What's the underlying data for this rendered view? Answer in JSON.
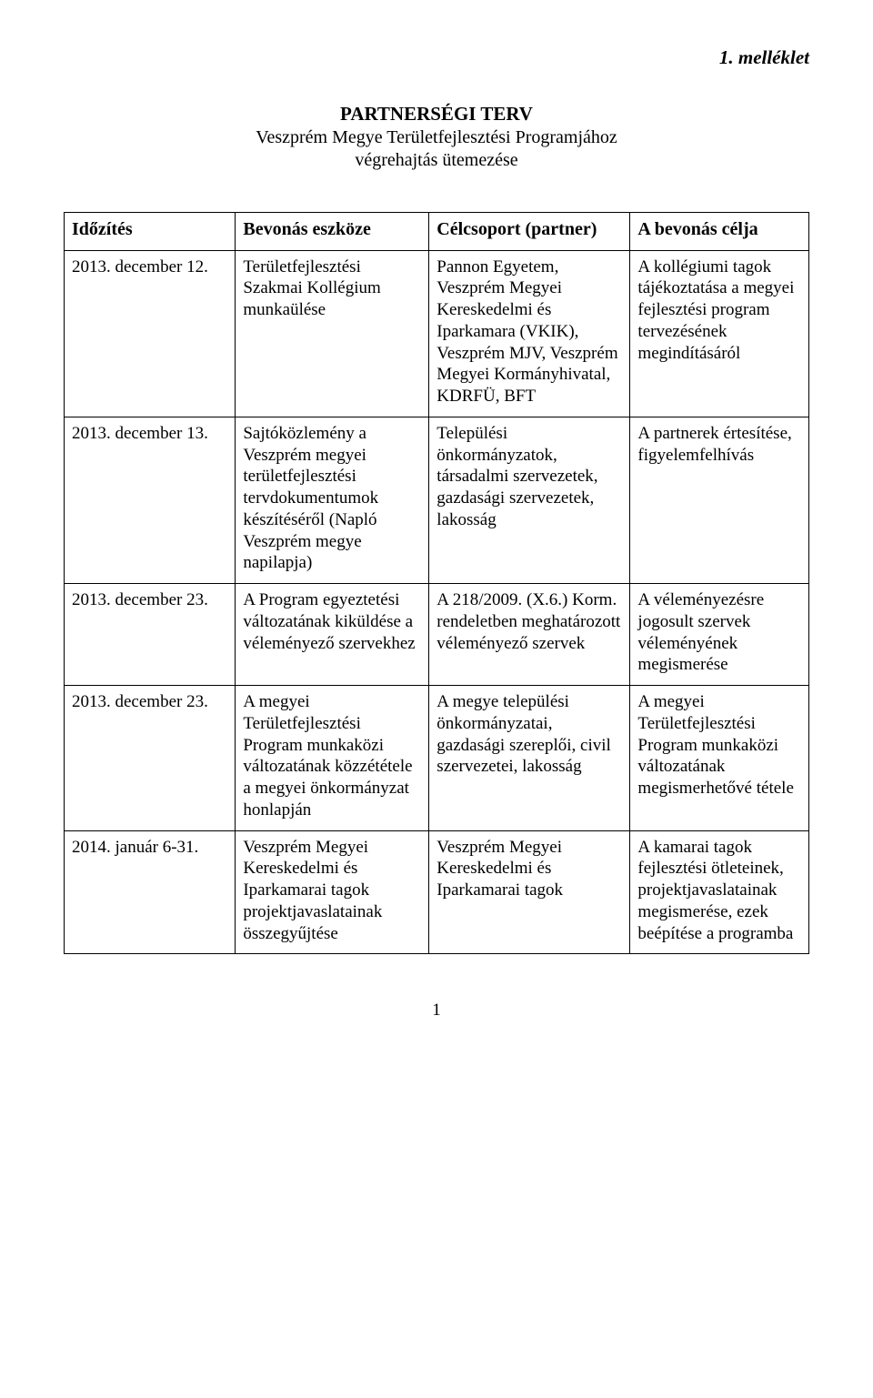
{
  "attachment_label": "1. melléklet",
  "main_title": "PARTNERSÉGI TERV",
  "subtitle_line1": "Veszprém Megye Területfejlesztési Programjához",
  "subtitle_line2": "végrehajtás ütemezése",
  "columns": {
    "c1": "Időzítés",
    "c2": "Bevonás eszköze",
    "c3": "Célcsoport (partner)",
    "c4": "A bevonás célja"
  },
  "rows": [
    {
      "c1": "2013. december 12.",
      "c2": "Területfejlesztési Szakmai Kollégium munkaülése",
      "c3": "Pannon Egyetem, Veszprém Megyei Kereskedelmi és Iparkamara (VKIK), Veszprém MJV, Veszprém Megyei Kormányhivatal, KDRFÜ, BFT",
      "c4": "A kollégiumi tagok tájékoztatása a megyei fejlesztési program tervezésének megindításáról"
    },
    {
      "c1": "2013. december 13.",
      "c2": "Sajtóközlemény a Veszprém megyei területfejlesztési tervdokumentumok készítéséről (Napló Veszprém megye napilapja)",
      "c3": "Települési önkormányzatok, társadalmi szervezetek, gazdasági szervezetek, lakosság",
      "c4": "A partnerek értesítése, figyelemfelhívás"
    },
    {
      "c1": "2013. december 23.",
      "c2": "A Program egyeztetési változatának kiküldése a véleményező szervekhez",
      "c3": "A 218/2009. (X.6.) Korm. rendeletben meghatározott véleményező szervek",
      "c4": "A véleményezésre jogosult szervek véleményének megismerése"
    },
    {
      "c1": "2013. december 23.",
      "c2": "A megyei Területfejlesztési Program munkaközi változatának közzététele a megyei önkormányzat honlapján",
      "c3": "A megye települési önkormányzatai, gazdasági szereplői, civil szervezetei, lakosság",
      "c4": "A megyei Területfejlesztési Program munkaközi változatának megismerhetővé tétele"
    },
    {
      "c1": "2014. január 6-31.",
      "c2": "Veszprém Megyei Kereskedelmi és Iparkamarai tagok projektjavaslatainak összegyűjtése",
      "c3": "Veszprém Megyei Kereskedelmi és Iparkamarai tagok",
      "c4": "A kamarai tagok fejlesztési ötleteinek, projektjavaslatainak megismerése, ezek beépítése a programba"
    }
  ],
  "page_number": "1"
}
